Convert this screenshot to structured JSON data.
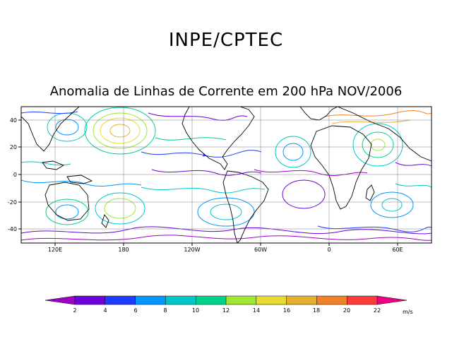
{
  "header": {
    "title": "INPE/CPTEC",
    "subtitle": "Anomalia de Linhas de Corrente em 200 hPa NOV/2006"
  },
  "map": {
    "lat_labels": [
      "40",
      "20",
      "0",
      "-20",
      "-40"
    ],
    "lon_labels": [
      "120E",
      "180",
      "120W",
      "60W",
      "0",
      "60E"
    ],
    "extent": {
      "lon_min": 100,
      "lon_max": 460,
      "lat_min": -50,
      "lat_max": 50
    }
  },
  "colorbar": {
    "units": "m/s",
    "tick_labels": [
      "2",
      "4",
      "6",
      "8",
      "10",
      "12",
      "14",
      "16",
      "18",
      "20",
      "22"
    ],
    "colors": [
      "#a000c8",
      "#6e00dc",
      "#1e3cff",
      "#0096ff",
      "#00c8c8",
      "#00d28c",
      "#a0e632",
      "#e6dc32",
      "#e6af2d",
      "#f08228",
      "#fa3c3c",
      "#f00082"
    ]
  }
}
